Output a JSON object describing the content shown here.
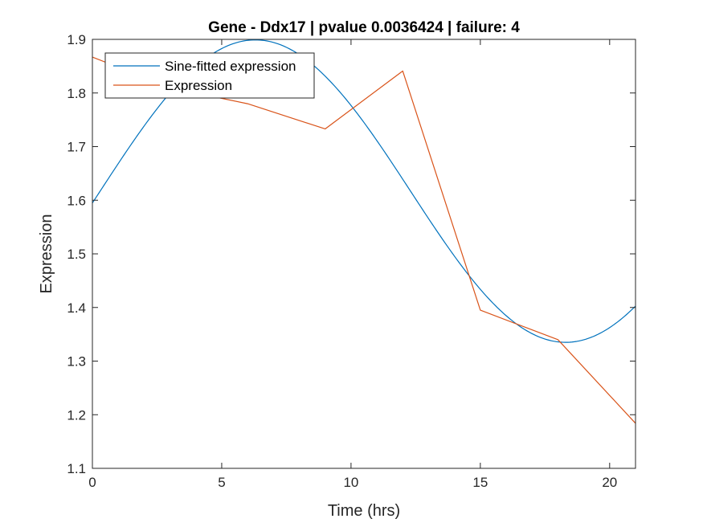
{
  "chart_data": {
    "type": "line",
    "title": "Gene - Ddx17 | pvalue 0.0036424 | failure: 4",
    "xlabel": "Time (hrs)",
    "ylabel": "Expression",
    "xlim": [
      0,
      21
    ],
    "ylim": [
      1.1,
      1.9
    ],
    "xticks": [
      0,
      5,
      10,
      15,
      20
    ],
    "yticks": [
      1.1,
      1.2,
      1.3,
      1.4,
      1.5,
      1.6,
      1.7,
      1.8,
      1.9
    ],
    "xtick_labels": [
      "0",
      "5",
      "10",
      "15",
      "20"
    ],
    "ytick_labels": [
      "1.1",
      "1.2",
      "1.3",
      "1.4",
      "1.5",
      "1.6",
      "1.7",
      "1.8",
      "1.9"
    ],
    "grid": false,
    "legend_position": "top-left",
    "series": [
      {
        "name": "Sine-fitted expression",
        "color": "#0072BD",
        "kind": "sine",
        "mean": 1.617,
        "amplitude": 0.282,
        "period": 24,
        "peak_time": 6.3,
        "x_range": [
          0,
          21
        ]
      },
      {
        "name": "Expression",
        "color": "#D95319",
        "x": [
          0,
          3,
          6,
          9,
          12,
          15,
          18,
          21
        ],
        "values": [
          1.867,
          1.81,
          1.78,
          1.733,
          1.841,
          1.395,
          1.34,
          1.184
        ]
      }
    ]
  }
}
